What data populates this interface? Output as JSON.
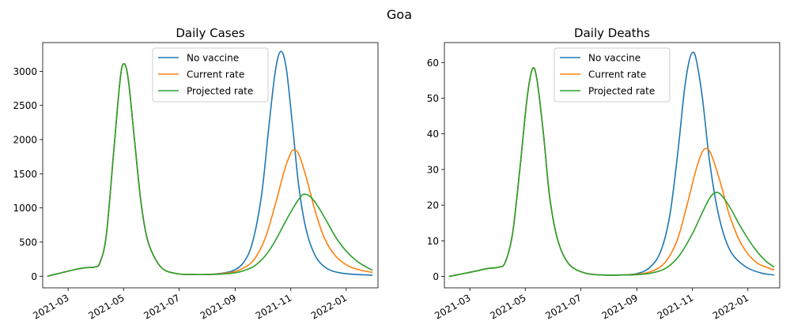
{
  "figure": {
    "suptitle": "Goa"
  },
  "chart_data": [
    {
      "type": "line",
      "title": "Daily Cases",
      "xlabel": "",
      "ylabel": "",
      "x_axis": "date",
      "xlim": [
        "2021-02-01",
        "2022-02-05"
      ],
      "ylim": [
        -170,
        3420
      ],
      "xticks": [
        "2021-03-01",
        "2021-05-01",
        "2021-07-01",
        "2021-09-01",
        "2021-11-01",
        "2022-01-01"
      ],
      "xtick_labels": [
        "2021-03",
        "2021-05",
        "2021-07",
        "2021-09",
        "2021-11",
        "2022-01"
      ],
      "yticks": [
        0,
        500,
        1000,
        1500,
        2000,
        2500,
        3000
      ],
      "ytick_labels": [
        "0",
        "500",
        "1000",
        "1500",
        "2000",
        "2500",
        "3000"
      ],
      "legend": {
        "placement": "upper center"
      },
      "grid": false,
      "series": [
        {
          "name": "No vaccine",
          "color": "#1f77b4",
          "points": [
            [
              "2021-02-06",
              0
            ],
            [
              "2021-02-20",
              45
            ],
            [
              "2021-03-06",
              90
            ],
            [
              "2021-03-20",
              125
            ],
            [
              "2021-03-30",
              135
            ],
            [
              "2021-04-05",
              200
            ],
            [
              "2021-04-12",
              600
            ],
            [
              "2021-04-20",
              1800
            ],
            [
              "2021-04-27",
              2850
            ],
            [
              "2021-05-01",
              3110
            ],
            [
              "2021-05-06",
              2900
            ],
            [
              "2021-05-13",
              2000
            ],
            [
              "2021-05-20",
              1100
            ],
            [
              "2021-05-27",
              550
            ],
            [
              "2021-06-05",
              250
            ],
            [
              "2021-06-15",
              90
            ],
            [
              "2021-06-30",
              35
            ],
            [
              "2021-07-15",
              25
            ],
            [
              "2021-08-01",
              25
            ],
            [
              "2021-08-15",
              40
            ],
            [
              "2021-08-29",
              80
            ],
            [
              "2021-09-10",
              200
            ],
            [
              "2021-09-20",
              500
            ],
            [
              "2021-09-30",
              1200
            ],
            [
              "2021-10-08",
              2200
            ],
            [
              "2021-10-15",
              3000
            ],
            [
              "2021-10-21",
              3290
            ],
            [
              "2021-10-27",
              3050
            ],
            [
              "2021-11-03",
              2200
            ],
            [
              "2021-11-10",
              1300
            ],
            [
              "2021-11-18",
              680
            ],
            [
              "2021-11-28",
              300
            ],
            [
              "2021-12-10",
              120
            ],
            [
              "2021-12-25",
              50
            ],
            [
              "2022-01-12",
              25
            ],
            [
              "2022-01-30",
              15
            ]
          ]
        },
        {
          "name": "Current rate",
          "color": "#ff7f0e",
          "points": [
            [
              "2021-02-06",
              0
            ],
            [
              "2021-02-20",
              45
            ],
            [
              "2021-03-06",
              90
            ],
            [
              "2021-03-20",
              125
            ],
            [
              "2021-03-30",
              135
            ],
            [
              "2021-04-05",
              200
            ],
            [
              "2021-04-12",
              600
            ],
            [
              "2021-04-20",
              1800
            ],
            [
              "2021-04-27",
              2850
            ],
            [
              "2021-05-01",
              3110
            ],
            [
              "2021-05-06",
              2900
            ],
            [
              "2021-05-13",
              2000
            ],
            [
              "2021-05-20",
              1100
            ],
            [
              "2021-05-27",
              550
            ],
            [
              "2021-06-05",
              250
            ],
            [
              "2021-06-15",
              90
            ],
            [
              "2021-06-30",
              35
            ],
            [
              "2021-07-15",
              25
            ],
            [
              "2021-08-01",
              25
            ],
            [
              "2021-08-15",
              35
            ],
            [
              "2021-08-29",
              60
            ],
            [
              "2021-09-10",
              120
            ],
            [
              "2021-09-22",
              250
            ],
            [
              "2021-10-04",
              560
            ],
            [
              "2021-10-15",
              1050
            ],
            [
              "2021-10-25",
              1550
            ],
            [
              "2021-11-01",
              1800
            ],
            [
              "2021-11-05",
              1850
            ],
            [
              "2021-11-10",
              1780
            ],
            [
              "2021-11-18",
              1450
            ],
            [
              "2021-11-28",
              950
            ],
            [
              "2021-12-08",
              560
            ],
            [
              "2021-12-20",
              300
            ],
            [
              "2022-01-02",
              160
            ],
            [
              "2022-01-15",
              95
            ],
            [
              "2022-01-30",
              55
            ]
          ]
        },
        {
          "name": "Projected rate",
          "color": "#2ca02c",
          "points": [
            [
              "2021-02-06",
              0
            ],
            [
              "2021-02-20",
              45
            ],
            [
              "2021-03-06",
              90
            ],
            [
              "2021-03-20",
              125
            ],
            [
              "2021-03-30",
              135
            ],
            [
              "2021-04-05",
              200
            ],
            [
              "2021-04-12",
              600
            ],
            [
              "2021-04-20",
              1800
            ],
            [
              "2021-04-27",
              2850
            ],
            [
              "2021-05-01",
              3110
            ],
            [
              "2021-05-06",
              2900
            ],
            [
              "2021-05-13",
              2000
            ],
            [
              "2021-05-20",
              1100
            ],
            [
              "2021-05-27",
              550
            ],
            [
              "2021-06-05",
              250
            ],
            [
              "2021-06-15",
              90
            ],
            [
              "2021-06-30",
              35
            ],
            [
              "2021-07-15",
              25
            ],
            [
              "2021-08-01",
              25
            ],
            [
              "2021-08-15",
              30
            ],
            [
              "2021-08-29",
              45
            ],
            [
              "2021-09-10",
              80
            ],
            [
              "2021-09-22",
              150
            ],
            [
              "2021-10-04",
              300
            ],
            [
              "2021-10-15",
              520
            ],
            [
              "2021-10-27",
              820
            ],
            [
              "2021-11-06",
              1050
            ],
            [
              "2021-11-13",
              1180
            ],
            [
              "2021-11-17",
              1200
            ],
            [
              "2021-11-23",
              1160
            ],
            [
              "2021-12-02",
              1000
            ],
            [
              "2021-12-12",
              770
            ],
            [
              "2021-12-22",
              540
            ],
            [
              "2022-01-03",
              340
            ],
            [
              "2022-01-15",
              200
            ],
            [
              "2022-01-30",
              85
            ]
          ]
        }
      ]
    },
    {
      "type": "line",
      "title": "Daily Deaths",
      "xlabel": "",
      "ylabel": "",
      "x_axis": "date",
      "xlim": [
        "2021-02-01",
        "2022-02-05"
      ],
      "ylim": [
        -3.2,
        65.6
      ],
      "xticks": [
        "2021-03-01",
        "2021-05-01",
        "2021-07-01",
        "2021-09-01",
        "2021-11-01",
        "2022-01-01"
      ],
      "xtick_labels": [
        "2021-03",
        "2021-05",
        "2021-07",
        "2021-09",
        "2021-11",
        "2022-01"
      ],
      "yticks": [
        0,
        10,
        20,
        30,
        40,
        50,
        60
      ],
      "ytick_labels": [
        "0",
        "10",
        "20",
        "30",
        "40",
        "50",
        "60"
      ],
      "legend": {
        "placement": "upper center"
      },
      "grid": false,
      "series": [
        {
          "name": "No vaccine",
          "color": "#1f77b4",
          "points": [
            [
              "2021-02-06",
              0
            ],
            [
              "2021-02-20",
              0.7
            ],
            [
              "2021-03-06",
              1.4
            ],
            [
              "2021-03-20",
              2.2
            ],
            [
              "2021-04-02",
              2.6
            ],
            [
              "2021-04-09",
              4
            ],
            [
              "2021-04-17",
              12
            ],
            [
              "2021-04-25",
              30
            ],
            [
              "2021-05-03",
              50
            ],
            [
              "2021-05-09",
              58.3
            ],
            [
              "2021-05-14",
              55
            ],
            [
              "2021-05-21",
              40
            ],
            [
              "2021-05-28",
              22
            ],
            [
              "2021-06-06",
              10
            ],
            [
              "2021-06-18",
              3.5
            ],
            [
              "2021-07-05",
              1
            ],
            [
              "2021-07-25",
              0.4
            ],
            [
              "2021-08-15",
              0.4
            ],
            [
              "2021-09-01",
              0.8
            ],
            [
              "2021-09-15",
              2.5
            ],
            [
              "2021-09-27",
              7
            ],
            [
              "2021-10-07",
              17
            ],
            [
              "2021-10-16",
              35
            ],
            [
              "2021-10-23",
              52
            ],
            [
              "2021-10-28",
              60
            ],
            [
              "2021-11-01",
              62.8
            ],
            [
              "2021-11-05",
              61
            ],
            [
              "2021-11-12",
              50
            ],
            [
              "2021-11-20",
              32
            ],
            [
              "2021-11-30",
              17
            ],
            [
              "2021-12-12",
              7.5
            ],
            [
              "2021-12-28",
              3
            ],
            [
              "2022-01-15",
              1
            ],
            [
              "2022-01-30",
              0.4
            ]
          ]
        },
        {
          "name": "Current rate",
          "color": "#ff7f0e",
          "points": [
            [
              "2021-02-06",
              0
            ],
            [
              "2021-02-20",
              0.7
            ],
            [
              "2021-03-06",
              1.4
            ],
            [
              "2021-03-20",
              2.2
            ],
            [
              "2021-04-02",
              2.6
            ],
            [
              "2021-04-09",
              4
            ],
            [
              "2021-04-17",
              12
            ],
            [
              "2021-04-25",
              30
            ],
            [
              "2021-05-03",
              50
            ],
            [
              "2021-05-09",
              58.3
            ],
            [
              "2021-05-14",
              55
            ],
            [
              "2021-05-21",
              40
            ],
            [
              "2021-05-28",
              22
            ],
            [
              "2021-06-06",
              10
            ],
            [
              "2021-06-18",
              3.5
            ],
            [
              "2021-07-05",
              1
            ],
            [
              "2021-07-25",
              0.4
            ],
            [
              "2021-08-15",
              0.4
            ],
            [
              "2021-09-01",
              0.6
            ],
            [
              "2021-09-18",
              1.5
            ],
            [
              "2021-10-02",
              4
            ],
            [
              "2021-10-15",
              10
            ],
            [
              "2021-10-26",
              20
            ],
            [
              "2021-11-05",
              30
            ],
            [
              "2021-11-12",
              35
            ],
            [
              "2021-11-17",
              35.8
            ],
            [
              "2021-11-22",
              34
            ],
            [
              "2021-12-01",
              27
            ],
            [
              "2021-12-12",
              17
            ],
            [
              "2021-12-25",
              9
            ],
            [
              "2022-01-10",
              4
            ],
            [
              "2022-01-30",
              1.8
            ]
          ]
        },
        {
          "name": "Projected rate",
          "color": "#2ca02c",
          "points": [
            [
              "2021-02-06",
              0
            ],
            [
              "2021-02-20",
              0.7
            ],
            [
              "2021-03-06",
              1.4
            ],
            [
              "2021-03-20",
              2.2
            ],
            [
              "2021-04-02",
              2.6
            ],
            [
              "2021-04-09",
              4
            ],
            [
              "2021-04-17",
              12
            ],
            [
              "2021-04-25",
              30
            ],
            [
              "2021-05-03",
              50
            ],
            [
              "2021-05-09",
              58.3
            ],
            [
              "2021-05-14",
              55
            ],
            [
              "2021-05-21",
              40
            ],
            [
              "2021-05-28",
              22
            ],
            [
              "2021-06-06",
              10
            ],
            [
              "2021-06-18",
              3.5
            ],
            [
              "2021-07-05",
              1
            ],
            [
              "2021-07-25",
              0.4
            ],
            [
              "2021-08-15",
              0.4
            ],
            [
              "2021-09-01",
              0.5
            ],
            [
              "2021-09-18",
              1
            ],
            [
              "2021-10-04",
              2.5
            ],
            [
              "2021-10-18",
              6
            ],
            [
              "2021-11-01",
              12
            ],
            [
              "2021-11-12",
              18
            ],
            [
              "2021-11-20",
              22
            ],
            [
              "2021-11-26",
              23.5
            ],
            [
              "2021-12-02",
              23
            ],
            [
              "2021-12-12",
              19.5
            ],
            [
              "2021-12-25",
              13.5
            ],
            [
              "2022-01-08",
              8
            ],
            [
              "2022-01-20",
              4.5
            ],
            [
              "2022-01-30",
              2.6
            ]
          ]
        }
      ]
    }
  ]
}
